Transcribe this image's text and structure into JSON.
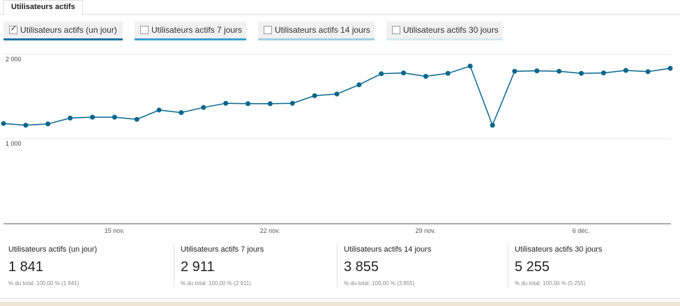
{
  "tab": {
    "label": "Utilisateurs actifs"
  },
  "metric_buttons": [
    {
      "label": "Utilisateurs actifs (un jour)",
      "checked": true,
      "underline_color": "#1a73a8"
    },
    {
      "label": "Utilisateurs actifs 7 jours",
      "checked": false,
      "underline_color": "#3a9fd1"
    },
    {
      "label": "Utilisateurs actifs 14 jours",
      "checked": false,
      "underline_color": "#a2cde6"
    },
    {
      "label": "Utilisateurs actifs 30 jours",
      "checked": false,
      "underline_color": "#d3e8f5"
    }
  ],
  "chart_data": {
    "type": "line",
    "series": [
      {
        "values": [
          1180,
          1160,
          1175,
          1245,
          1255,
          1255,
          1230,
          1340,
          1310,
          1370,
          1420,
          1415,
          1415,
          1420,
          1510,
          1530,
          1640,
          1770,
          1780,
          1740,
          1775,
          1860,
          1160,
          1800,
          1805,
          1800,
          1775,
          1780,
          1810,
          1795,
          1835
        ],
        "color": "#05668d"
      }
    ],
    "y_ticks": [
      "2 000",
      "1 000"
    ],
    "ylim": [
      0,
      2000
    ],
    "x_ticks": [
      "15 nov.",
      "22 nov.",
      "29 nov.",
      "6 déc."
    ],
    "grid": true
  },
  "stats": [
    {
      "name": "Utilisateurs actifs (un jour)",
      "value": "1 841",
      "sub": "% du total: 100,00 % (1 841)"
    },
    {
      "name": "Utilisateurs actifs 7 jours",
      "value": "2 911",
      "sub": "% du total: 100,00 % (2 911)"
    },
    {
      "name": "Utilisateurs actifs 14 jours",
      "value": "3 855",
      "sub": "% du total: 100,00 % (3 855)"
    },
    {
      "name": "Utilisateurs actifs 30 jours",
      "value": "5 255",
      "sub": "% du total: 100,00 % (5 255)"
    }
  ]
}
